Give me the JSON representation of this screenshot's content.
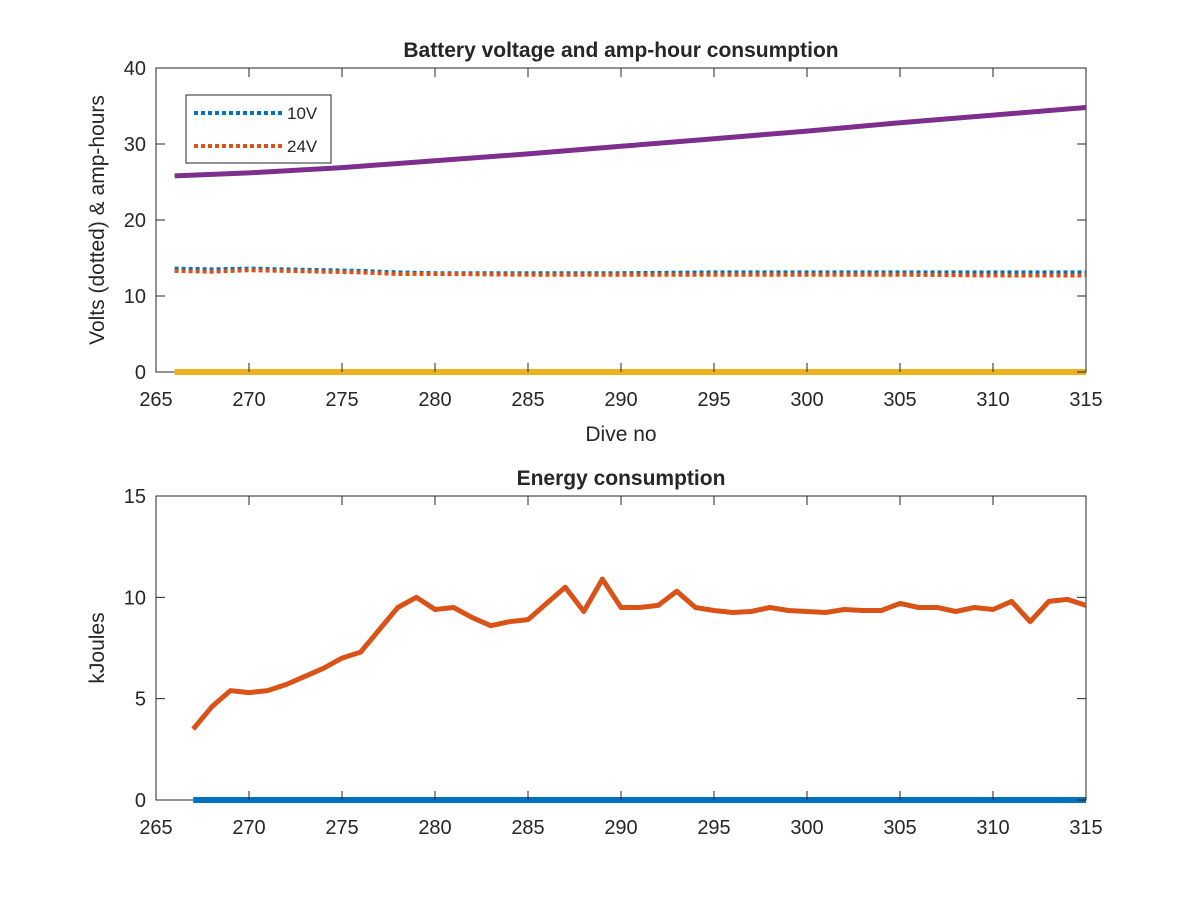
{
  "chart_data": [
    {
      "type": "line",
      "title": "Battery voltage and amp-hour consumption",
      "xlabel": "Dive no",
      "ylabel": "Volts (dotted) & amp-hours",
      "xlim": [
        265,
        315
      ],
      "ylim": [
        0,
        40
      ],
      "xticks": [
        265,
        270,
        275,
        280,
        285,
        290,
        295,
        300,
        305,
        310,
        315
      ],
      "yticks": [
        0,
        10,
        20,
        30,
        40
      ],
      "legend_position": "top-left",
      "grid": false,
      "series": [
        {
          "name": "10V",
          "style": "dotted",
          "color": "#0072BD",
          "x": [
            266,
            268,
            270,
            272,
            274,
            276,
            278,
            280,
            285,
            290,
            295,
            300,
            305,
            310,
            315
          ],
          "y": [
            13.6,
            13.5,
            13.6,
            13.5,
            13.4,
            13.3,
            13.1,
            13.0,
            13.0,
            13.0,
            13.1,
            13.1,
            13.1,
            13.1,
            13.1
          ]
        },
        {
          "name": "24V",
          "style": "dotted",
          "color": "#D95319",
          "x": [
            266,
            268,
            270,
            272,
            274,
            276,
            278,
            280,
            285,
            290,
            295,
            300,
            305,
            310,
            315
          ],
          "y": [
            13.3,
            13.2,
            13.4,
            13.3,
            13.2,
            13.1,
            12.9,
            12.9,
            12.8,
            12.8,
            12.8,
            12.8,
            12.8,
            12.7,
            12.7
          ]
        },
        {
          "style": "solid",
          "color": "#7E2F8E",
          "x": [
            266,
            270,
            275,
            280,
            285,
            290,
            295,
            300,
            305,
            310,
            315
          ],
          "y": [
            25.8,
            26.2,
            26.9,
            27.8,
            28.7,
            29.7,
            30.7,
            31.7,
            32.8,
            33.8,
            34.8
          ]
        },
        {
          "style": "solid",
          "color": "#EDB120",
          "x": [
            266,
            315
          ],
          "y": [
            0,
            0
          ]
        }
      ]
    },
    {
      "type": "line",
      "title": "Energy consumption",
      "xlabel": "",
      "ylabel": "kJoules",
      "xlim": [
        265,
        315
      ],
      "ylim": [
        0,
        15
      ],
      "xticks": [
        265,
        270,
        275,
        280,
        285,
        290,
        295,
        300,
        305,
        310,
        315
      ],
      "yticks": [
        0,
        5,
        10,
        15
      ],
      "grid": false,
      "series": [
        {
          "style": "solid",
          "color": "#0072BD",
          "x": [
            267,
            315
          ],
          "y": [
            0,
            0
          ]
        },
        {
          "style": "solid",
          "color": "#D95319",
          "x": [
            267,
            268,
            269,
            270,
            271,
            272,
            273,
            274,
            275,
            276,
            277,
            278,
            279,
            280,
            281,
            282,
            283,
            284,
            285,
            286,
            287,
            288,
            289,
            290,
            291,
            292,
            293,
            294,
            295,
            296,
            297,
            298,
            299,
            300,
            301,
            302,
            303,
            304,
            305,
            306,
            307,
            308,
            309,
            310,
            311,
            312,
            313,
            314,
            315
          ],
          "y": [
            3.5,
            4.6,
            5.4,
            5.3,
            5.4,
            5.7,
            6.1,
            6.5,
            7.0,
            7.3,
            8.4,
            9.5,
            10.0,
            9.4,
            9.5,
            9.0,
            8.6,
            8.8,
            8.9,
            9.7,
            10.5,
            9.3,
            10.9,
            9.5,
            9.5,
            9.6,
            10.3,
            9.5,
            9.35,
            9.25,
            9.3,
            9.5,
            9.35,
            9.3,
            9.25,
            9.4,
            9.35,
            9.35,
            9.7,
            9.5,
            9.5,
            9.3,
            9.5,
            9.4,
            9.8,
            8.8,
            9.8,
            9.9,
            9.6
          ]
        }
      ]
    }
  ]
}
